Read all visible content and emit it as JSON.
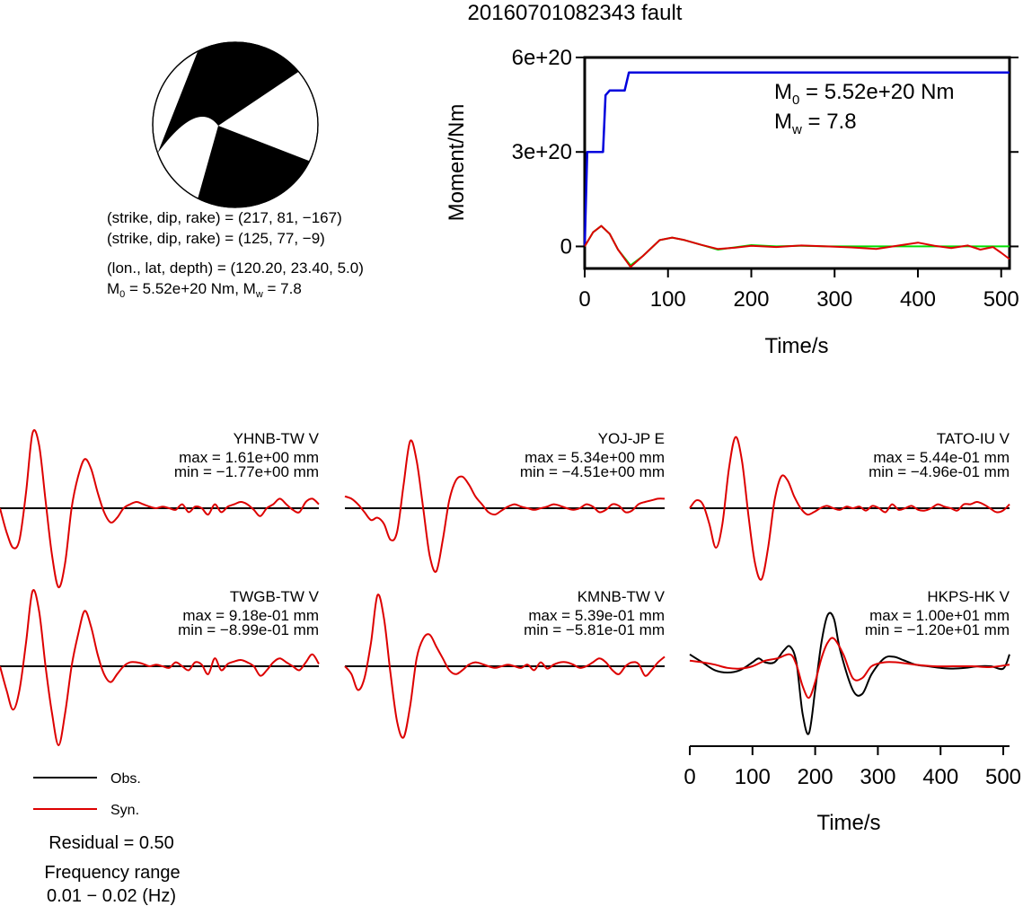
{
  "title": "20160701082343 fault",
  "mechanism": {
    "nodal_plane_1": "(strike, dip, rake) = (217, 81, −167)",
    "nodal_plane_2": "(strike, dip, rake) = (125, 77, −9)",
    "location": "(lon., lat, depth) = (120.20, 23.40, 5.0)",
    "moment_prefix": "M",
    "moment_sub": "0",
    "moment_suffix": " = 5.52e+20 Nm, M",
    "mw_sub": "w",
    "mw_value": " = 7.8"
  },
  "chart_data": [
    {
      "type": "line",
      "title": "",
      "xlabel": "Time/s",
      "ylabel": "Moment/Nm",
      "xlim": [
        0,
        510
      ],
      "ylim": [
        -7e+19,
        6e+20
      ],
      "xticks": [
        0,
        100,
        200,
        300,
        400,
        500
      ],
      "yticks": [
        0,
        3e+20,
        6e+20
      ],
      "ytick_labels": [
        "0",
        "3e+20",
        "6e+20"
      ],
      "annotation": {
        "m0_prefix": "M",
        "m0_sub": "0",
        "m0_value": " = 5.52e+20 Nm",
        "mw_prefix": "M",
        "mw_sub": "w",
        "mw_value": " = 7.8"
      },
      "series": [
        {
          "color": "#0000dd",
          "x": [
            0,
            3,
            5,
            22,
            25,
            30,
            33,
            48,
            53,
            510
          ],
          "y": [
            0,
            3e+20,
            3e+20,
            3e+20,
            4.8e+20,
            4.95e+20,
            4.95e+20,
            4.95e+20,
            5.52e+20,
            5.52e+20
          ]
        },
        {
          "color": "#00dd00",
          "x": [
            0,
            10,
            20,
            30,
            40,
            55,
            70,
            90,
            105,
            120,
            140,
            160,
            180,
            200,
            230,
            260,
            290,
            320,
            350,
            380,
            420,
            460,
            510
          ],
          "y": [
            0,
            4.5e+19,
            6.5e+19,
            4e+19,
            -1e+19,
            -6e+19,
            -3e+19,
            2e+19,
            2.8e+19,
            2e+19,
            5e+18,
            -1e+19,
            -3e+18,
            4e+18,
            0,
            2e+18,
            0,
            0,
            0,
            0,
            0,
            0,
            0
          ]
        },
        {
          "color": "#dd0000",
          "x": [
            0,
            10,
            20,
            30,
            40,
            55,
            70,
            90,
            105,
            120,
            140,
            160,
            180,
            200,
            230,
            260,
            290,
            320,
            350,
            380,
            400,
            420,
            440,
            460,
            475,
            490,
            500,
            510
          ],
          "y": [
            0,
            4.5e+19,
            6.5e+19,
            4e+19,
            -1e+19,
            -6.5e+19,
            -3e+19,
            2e+19,
            2.8e+19,
            2e+19,
            5e+18,
            -8e+18,
            -4e+18,
            2e+18,
            -2e+18,
            3e+18,
            0,
            -3e+18,
            -8e+18,
            4e+18,
            1.2e+19,
            2e+18,
            -5e+18,
            3e+18,
            -1e+19,
            -2e+18,
            -2e+19,
            -4e+19
          ]
        }
      ]
    },
    {
      "type": "line",
      "xlabel": "Time/s",
      "xlim": [
        0,
        510
      ],
      "xticks": [
        0,
        100,
        200,
        300,
        400,
        500
      ],
      "traces": [
        {
          "station": "YHNB-TW V",
          "max": "max = 1.61e+00 mm",
          "min": "min = −1.77e+00 mm",
          "syn": [
            0,
            -0.3,
            -0.5,
            -0.4,
            0.2,
            0.95,
            0.8,
            0.1,
            -0.6,
            -1,
            -0.7,
            0.0,
            0.4,
            0.62,
            0.5,
            0.2,
            -0.05,
            -0.18,
            -0.12,
            0,
            0.05,
            0.08,
            0.05,
            0.02,
            0,
            0.02,
            0.0,
            -0.02,
            0.05,
            -0.05,
            0.02,
            0.0,
            -0.08,
            0.05,
            -0.05,
            0.02,
            0.05,
            0.08,
            0.05,
            -0.02,
            -0.1,
            0.0,
            0.05,
            0.12,
            0.05,
            -0.02,
            -0.05,
            0.08,
            0.12,
            0.05
          ]
        },
        {
          "station": "YOJ-JP E",
          "max": "max = 5.34e+00 mm",
          "min": "min = −4.51e+00 mm",
          "syn": [
            0.15,
            0.12,
            0.05,
            -0.05,
            -0.15,
            -0.12,
            -0.2,
            -0.4,
            -0.3,
            0.3,
            0.85,
            0.6,
            0.0,
            -0.6,
            -0.8,
            -0.4,
            0.1,
            0.35,
            0.4,
            0.3,
            0.15,
            0.05,
            -0.05,
            -0.08,
            -0.03,
            0.02,
            0.05,
            0.02,
            0.0,
            -0.02,
            0.0,
            0.02,
            0.05,
            0.03,
            0.0,
            -0.02,
            0.0,
            0.05,
            0.02,
            -0.05,
            -0.02,
            0.05,
            0.03,
            -0.05,
            -0.03,
            0.05,
            0.08,
            0.1,
            0.12,
            0.12
          ]
        },
        {
          "station": "TATO-IU V",
          "max": "max = 5.44e-01 mm",
          "min": "min = −4.96e-01 mm",
          "syn": [
            0,
            0.1,
            0.05,
            -0.2,
            -0.5,
            -0.2,
            0.5,
            0.9,
            0.6,
            -0.1,
            -0.7,
            -0.9,
            -0.5,
            0.1,
            0.4,
            0.35,
            0.15,
            0.0,
            -0.08,
            -0.05,
            0.0,
            0.03,
            0.0,
            -0.02,
            0.02,
            0.0,
            0.02,
            -0.03,
            0.03,
            0.0,
            -0.05,
            0.05,
            -0.02,
            0.0,
            0.03,
            -0.02,
            -0.03,
            0.0,
            0.05,
            0.02,
            0.0,
            -0.03,
            0.05,
            0.05,
            0.08,
            0.05,
            0.0,
            -0.05,
            -0.03,
            0.05
          ]
        },
        {
          "station": "TWGB-TW V",
          "max": "max = 9.18e-01 mm",
          "min": "min = −8.99e-01 mm",
          "syn": [
            0,
            -0.3,
            -0.55,
            -0.3,
            0.3,
            0.95,
            0.7,
            0.0,
            -0.6,
            -1,
            -0.6,
            0.0,
            0.4,
            0.7,
            0.5,
            0.15,
            -0.1,
            -0.2,
            -0.1,
            0.0,
            0.05,
            0.05,
            0.03,
            0.0,
            0.02,
            0.0,
            -0.02,
            0.05,
            0.0,
            -0.05,
            0.05,
            0.02,
            -0.1,
            0.1,
            -0.05,
            0.03,
            0.06,
            0.08,
            0.05,
            0.0,
            -0.12,
            -0.05,
            0.05,
            0.1,
            0.05,
            0.0,
            -0.05,
            0.05,
            0.15,
            0.03
          ]
        },
        {
          "station": "KMNB-TW V",
          "max": "max = 5.39e-01 mm",
          "min": "min = −5.81e-01 mm",
          "syn": [
            0,
            -0.1,
            -0.3,
            -0.15,
            0.3,
            0.9,
            0.6,
            -0.1,
            -0.7,
            -0.9,
            -0.5,
            0.1,
            0.35,
            0.4,
            0.25,
            0.1,
            -0.05,
            -0.1,
            -0.05,
            0.02,
            0.05,
            0.03,
            0.0,
            -0.02,
            0.0,
            0.02,
            0.0,
            -0.02,
            0.02,
            -0.05,
            0.05,
            -0.03,
            0.02,
            0.05,
            0.05,
            0.02,
            -0.02,
            0.0,
            0.05,
            0.1,
            0.05,
            -0.05,
            -0.1,
            0.0,
            0.05,
            0.03,
            -0.12,
            -0.05,
            0.05,
            0.12
          ]
        },
        {
          "station": "HKPS-HK V",
          "max": "max = 1.00e+01 mm",
          "min": "min = −1.20e+01 mm",
          "obs_x": [
            0,
            20,
            40,
            60,
            80,
            100,
            110,
            120,
            135,
            150,
            160,
            170,
            180,
            190,
            200,
            210,
            220,
            230,
            240,
            260,
            275,
            290,
            310,
            325,
            340,
            360,
            380,
            400,
            420,
            440,
            460,
            480,
            500,
            510
          ],
          "obs": [
            0.15,
            0.05,
            -0.05,
            -0.08,
            -0.05,
            0.05,
            0.1,
            0.05,
            0.05,
            0.2,
            0.25,
            0.05,
            -0.6,
            -0.85,
            -0.3,
            0.3,
            0.65,
            0.6,
            0.2,
            -0.3,
            -0.35,
            -0.1,
            0.1,
            0.12,
            0.08,
            0.02,
            0.0,
            -0.02,
            -0.03,
            -0.02,
            0.0,
            0.0,
            -0.03,
            0.15
          ],
          "syn_x": [
            0,
            20,
            40,
            60,
            80,
            100,
            120,
            140,
            160,
            170,
            180,
            190,
            200,
            210,
            220,
            230,
            245,
            260,
            275,
            290,
            310,
            330,
            360,
            390,
            420,
            450,
            480,
            510
          ],
          "syn": [
            0.07,
            0.05,
            0.02,
            -0.02,
            -0.03,
            0.0,
            0.07,
            0.1,
            0.15,
            0.02,
            -0.25,
            -0.4,
            -0.2,
            0.1,
            0.3,
            0.35,
            0.15,
            -0.15,
            -0.15,
            0.0,
            0.05,
            0.05,
            0.02,
            0.0,
            0.0,
            0.0,
            -0.01,
            0.02
          ]
        }
      ]
    }
  ],
  "legend": {
    "obs": "Obs.",
    "syn": "Syn.",
    "obs_color": "#000000",
    "syn_color": "#dd0000"
  },
  "residual": "Residual = 0.50",
  "freq_label": "Frequency range",
  "freq_value": "0.01 − 0.02 (Hz)"
}
